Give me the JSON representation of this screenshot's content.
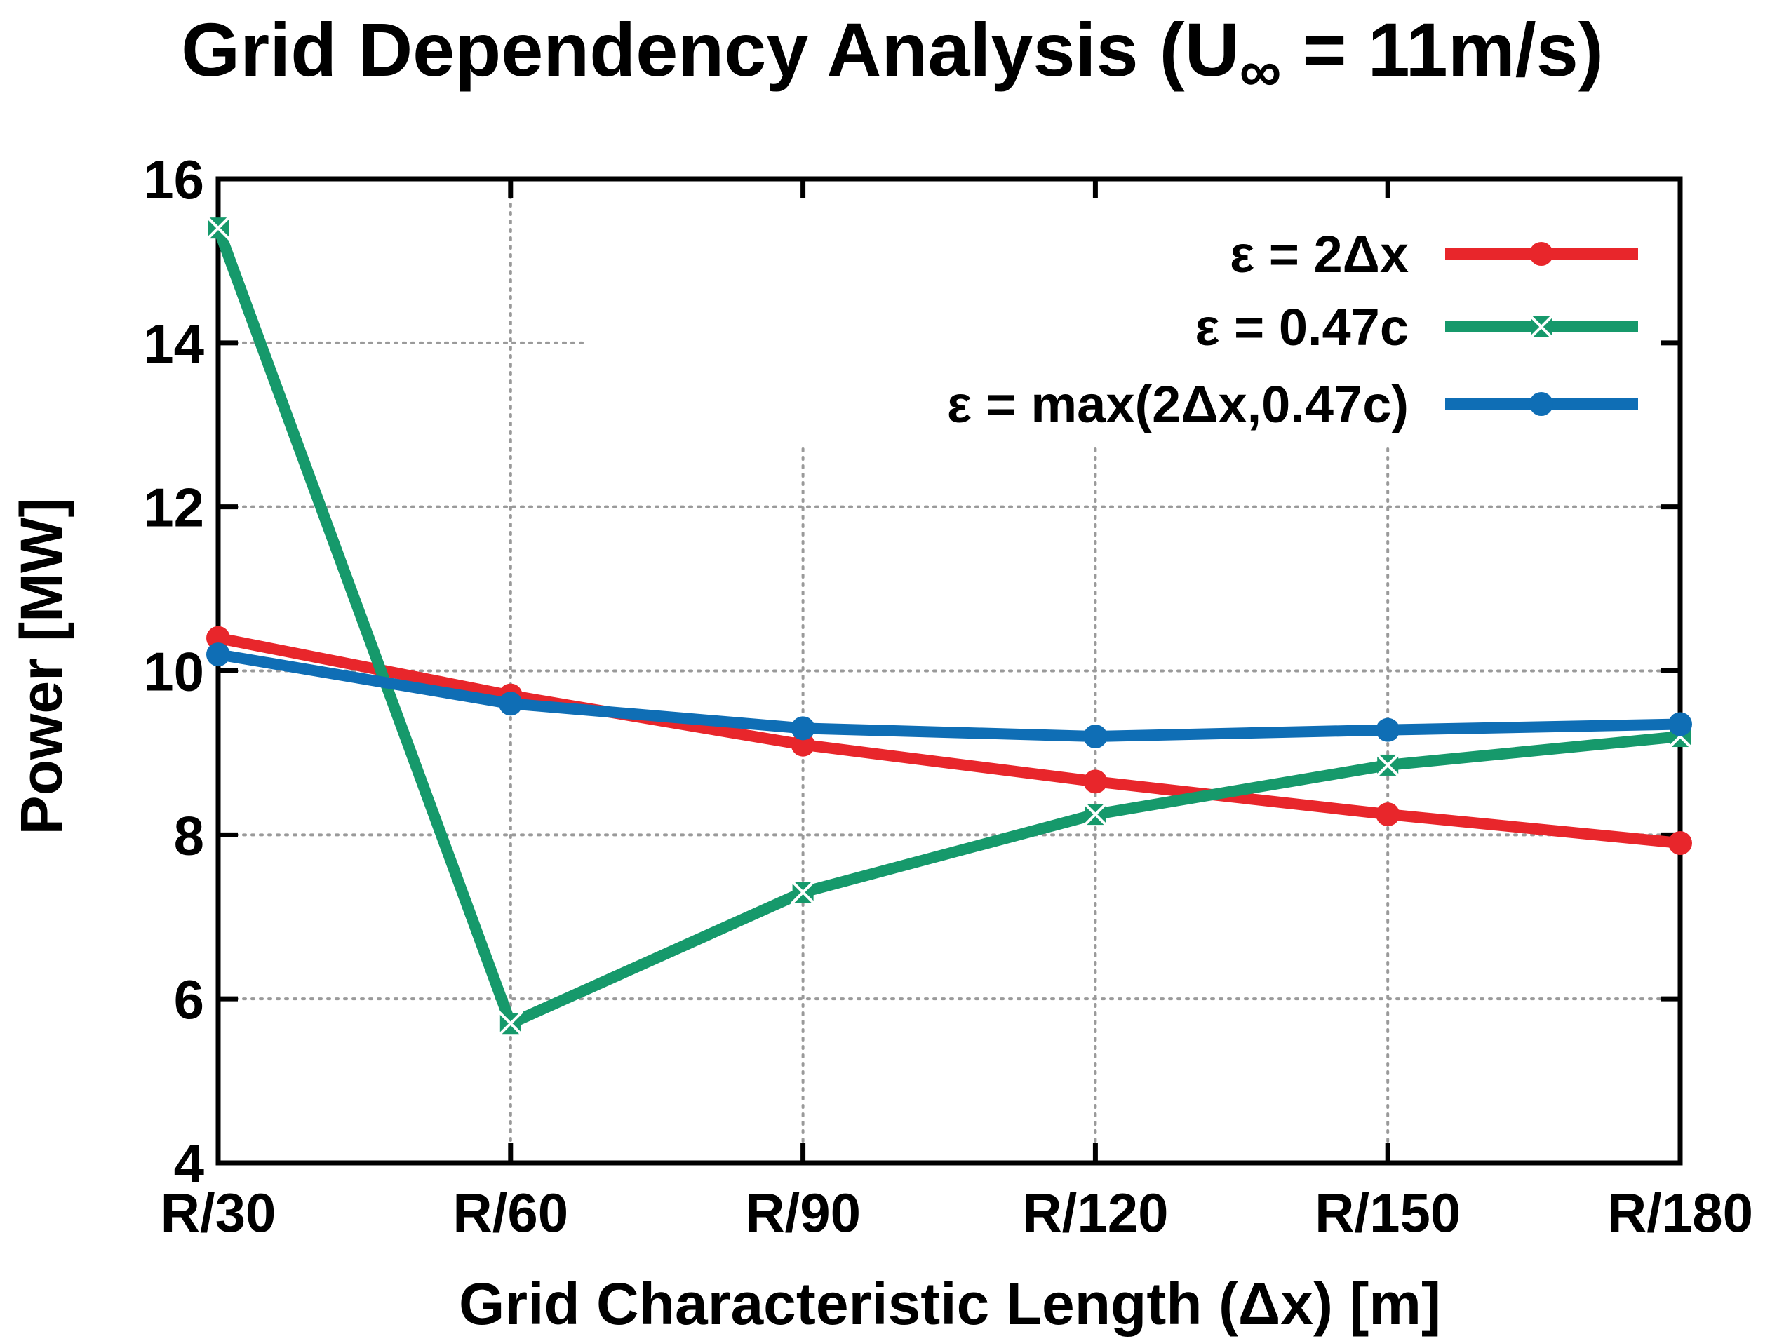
{
  "chart_data": {
    "type": "line",
    "title": "Grid Dependency Analysis (U",
    "title_subscript": "∞",
    "title_suffix": " = 11m/s)",
    "xlabel": "Grid Characteristic Length (Δx)  [m]",
    "ylabel": "Power [MW]",
    "categories": [
      "R/30",
      "R/60",
      "R/90",
      "R/120",
      "R/150",
      "R/180"
    ],
    "ylim": [
      4,
      16
    ],
    "yticks": [
      "4",
      "6",
      "8",
      "10",
      "12",
      "14",
      "16"
    ],
    "ytick_values": [
      4,
      6,
      8,
      10,
      12,
      14,
      16
    ],
    "grid": true,
    "legend_position": "top-right",
    "series": [
      {
        "name": "ε = 2Δx",
        "color": "#e8262b",
        "marker": "circle",
        "values": [
          10.4,
          9.7,
          9.1,
          8.65,
          8.25,
          7.9
        ]
      },
      {
        "name": "ε = 0.47c",
        "color": "#16996b",
        "marker": "x-square",
        "values": [
          15.4,
          5.7,
          7.3,
          8.25,
          8.85,
          9.2
        ]
      },
      {
        "name": "ε = max(2Δx,0.47c)",
        "color": "#0f6eb5",
        "marker": "circle",
        "values": [
          10.2,
          9.6,
          9.3,
          9.2,
          9.28,
          9.35
        ]
      }
    ]
  }
}
